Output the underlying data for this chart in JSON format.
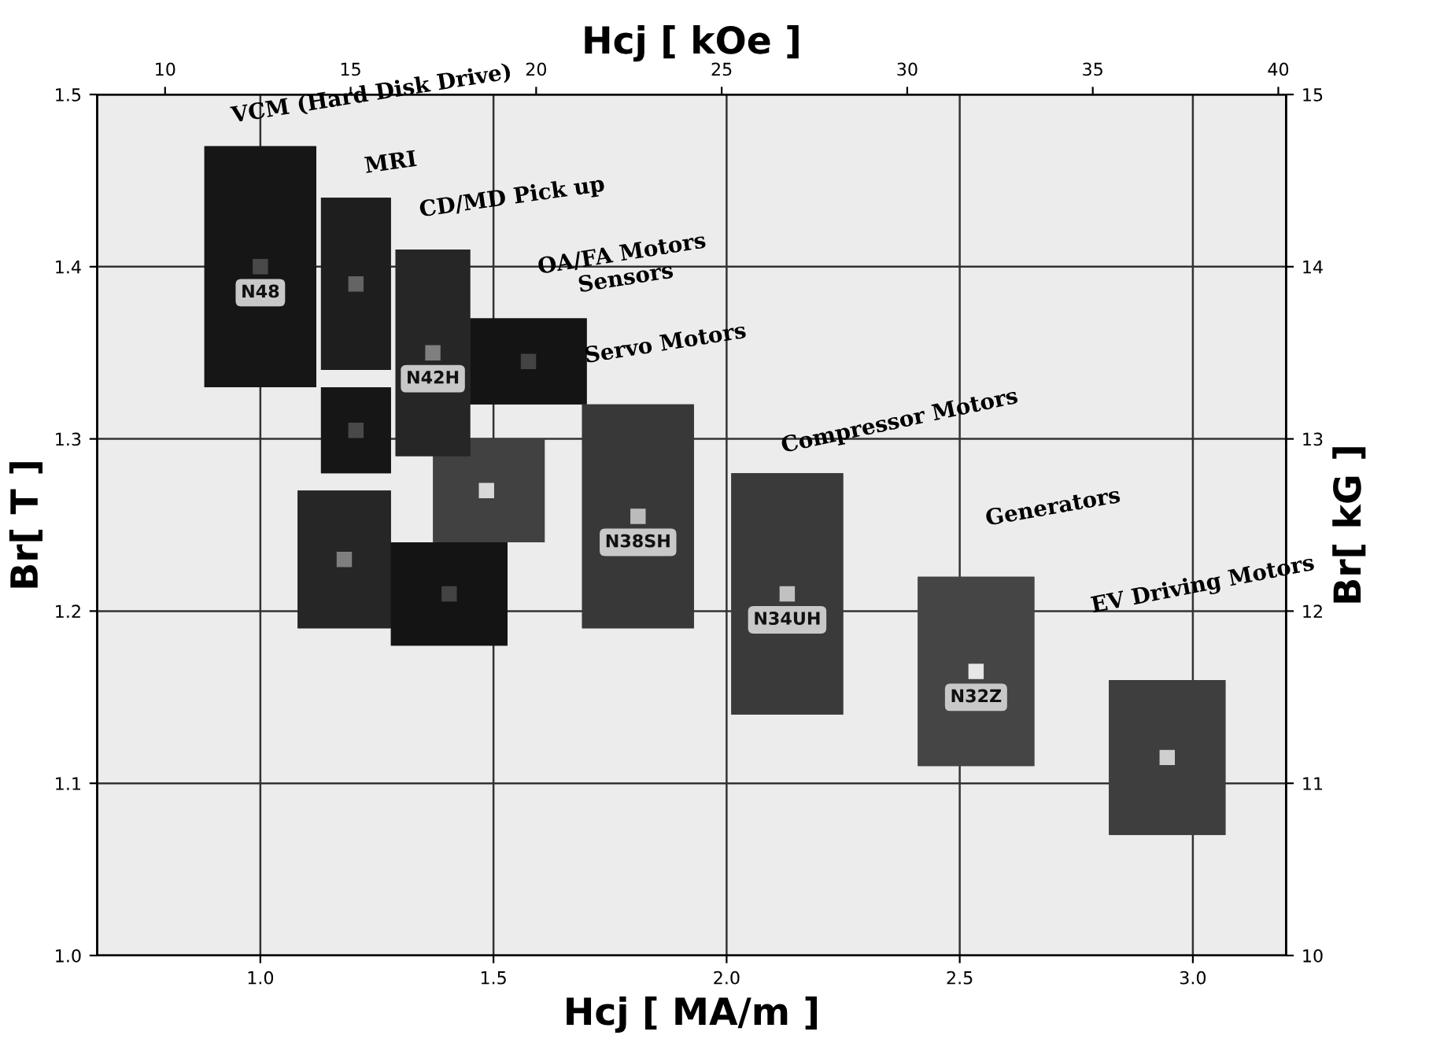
{
  "chart_data": {
    "type": "scatter",
    "xlabel": "Hcj [ MA/m ]",
    "x2label": "Hcj [ kOe ]",
    "ylabel": "Br[ T ]",
    "y2label": "Br[ kG ]",
    "xlim": [
      0.65,
      3.2
    ],
    "xticks": [
      {
        "value": 1,
        "label": "1.0"
      },
      1.5,
      {
        "value": 2,
        "label": "2.0"
      },
      2.5,
      {
        "value": 3,
        "label": "3.0"
      }
    ],
    "x2lim": [
      8.17,
      40.21
    ],
    "x2ticks": [
      10,
      15,
      20,
      25,
      30,
      35,
      40
    ],
    "ylim": [
      1.0,
      1.5
    ],
    "yticks": [
      {
        "value": 1,
        "label": "1.0"
      },
      1.1,
      1.2,
      1.3,
      1.4,
      1.5
    ],
    "y2lim": [
      10,
      15
    ],
    "y2ticks": [
      10,
      11,
      12,
      13,
      14,
      15
    ],
    "grid": true,
    "marker": "square",
    "series": [
      {
        "x": [
          1.0,
          1.205,
          1.205,
          1.18,
          1.405,
          1.485,
          1.37,
          1.575,
          1.81,
          2.13,
          2.535,
          2.945
        ],
        "values": [
          1.4,
          1.39,
          1.305,
          1.23,
          1.21,
          1.27,
          1.35,
          1.345,
          1.255,
          1.21,
          1.165,
          1.115
        ],
        "xerrors": [
          [
            0.88,
            1.12
          ],
          [
            1.13,
            1.28
          ],
          [
            1.13,
            1.28
          ],
          [
            1.08,
            1.28
          ],
          [
            1.28,
            1.53
          ],
          [
            1.38,
            1.61
          ],
          [
            1.29,
            1.45
          ],
          [
            1.45,
            1.7
          ],
          [
            1.69,
            1.93
          ],
          [
            2.01,
            2.25
          ],
          [
            2.41,
            2.66
          ],
          [
            2.82,
            3.07
          ]
        ],
        "errors": [
          [
            1.33,
            1.47
          ],
          [
            1.34,
            1.44
          ],
          [
            1.28,
            1.33
          ],
          [
            1.19,
            1.27
          ],
          [
            1.18,
            1.24
          ],
          [
            1.24,
            1.3
          ],
          [
            1.29,
            1.41
          ],
          [
            1.32,
            1.37
          ],
          [
            1.19,
            1.32
          ],
          [
            1.14,
            1.28
          ],
          [
            1.11,
            1.22
          ],
          [
            1.07,
            1.16
          ]
        ],
        "value_labels": [
          "N48",
          null,
          null,
          null,
          null,
          null,
          "N42H",
          null,
          "N38SH",
          "N34UH",
          "N32Z",
          null
        ],
        "colors": [
          "#494949",
          "#646464",
          "#494949",
          "#7f7f7f",
          "#434343",
          "#d8d8d8",
          "#7f7f7f",
          "#434343",
          "#bbbbbb",
          "#c1c1c1",
          "#e6e6e6",
          "#cfcfcf"
        ]
      }
    ],
    "annotations": [
      "VCM (Hard Disk Drive)",
      "MRI",
      "CD/MD Pick up",
      "OA/FA Motors\nSensors",
      "Servo Motors",
      "Compressor Motors",
      "Generators",
      "EV Driving Motors"
    ]
  }
}
